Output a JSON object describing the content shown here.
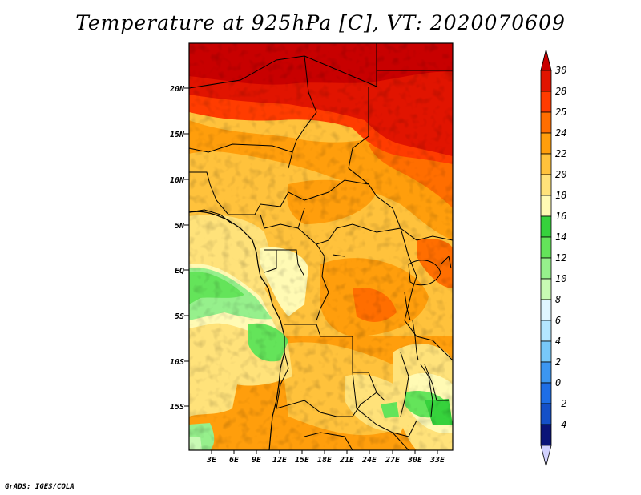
{
  "title": "Temperature at 925hPa [C], VT: 2020070609",
  "credit": "GrADS: IGES/COLA",
  "map": {
    "variable": "Temperature",
    "level": "925hPa",
    "units": "C",
    "valid_time": "2020070609",
    "lat_labels": [
      "20N",
      "15N",
      "10N",
      "5N",
      "EQ",
      "5S",
      "10S",
      "15S"
    ],
    "lon_labels": [
      "3E",
      "6E",
      "9E",
      "12E",
      "15E",
      "18E",
      "21E",
      "24E",
      "27E",
      "30E",
      "33E"
    ]
  },
  "colorbar": {
    "labels": [
      "30",
      "28",
      "25",
      "24",
      "22",
      "20",
      "18",
      "16",
      "14",
      "12",
      "10",
      "8",
      "6",
      "4",
      "2",
      "0",
      "-2",
      "-4"
    ],
    "colors": [
      "#c80000",
      "#e11400",
      "#ff3c00",
      "#ff6e00",
      "#ff9e0c",
      "#ffc23c",
      "#ffe27a",
      "#fffab4",
      "#36d23c",
      "#64e45a",
      "#96f08c",
      "#c8fab4",
      "#e0f6ff",
      "#b4e6ff",
      "#78c8f8",
      "#3c96f0",
      "#1e6ee6",
      "#1450c8",
      "#0a1478",
      "#d2d2ff"
    ]
  }
}
